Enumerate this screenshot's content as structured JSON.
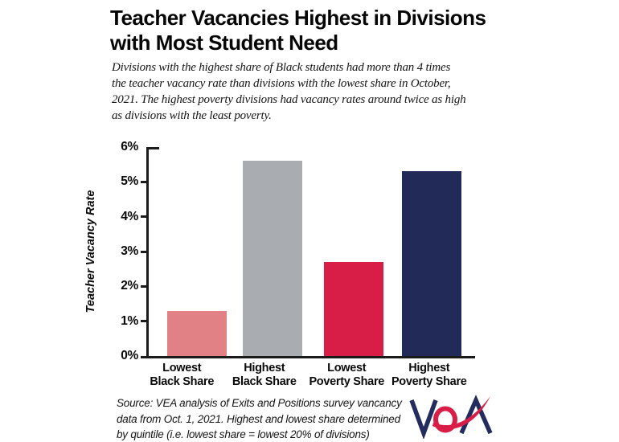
{
  "title": {
    "lines": [
      "Teacher Vacancies Highest in Divisions",
      "with Most Student Need"
    ]
  },
  "subtitle": {
    "lines": [
      "Divisions with the highest share of  Black students had more than 4 times",
      "the teacher vacancy rate than divisions with the lowest share in October,",
      "2021. The highest poverty divisions had vacancy rates around twice as high",
      "as divisions with the least poverty."
    ]
  },
  "chart_data": {
    "type": "bar",
    "categories": [
      "Lowest Black Share",
      "Highest Black Share",
      "Lowest Poverty Share",
      "Highest Poverty Share"
    ],
    "values": [
      1.3,
      5.6,
      2.7,
      5.3
    ],
    "unit": "%",
    "colors": [
      "#E28185",
      "#A9ADB2",
      "#D81E47",
      "#222B58"
    ],
    "title": "",
    "xlabel": "",
    "ylabel": "Teacher Vacancy Rate",
    "ylim": [
      0,
      6
    ],
    "yticks": [
      "0%",
      "1%",
      "2%",
      "3%",
      "4%",
      "5%",
      "6%"
    ],
    "grid": false,
    "legend": "none",
    "axis_color": "#1b1b1b"
  },
  "source": {
    "lines": [
      "Source: VEA analysis of Exits and Positions survey vancancy",
      "data from Oct. 1, 2021. Highest and lowest share determined",
      "by quintile (i.e. lowest share = lowest 20% of divisions)"
    ]
  },
  "logo": {
    "name": "VEA",
    "navy": "#232C5C",
    "red": "#D81E47"
  }
}
